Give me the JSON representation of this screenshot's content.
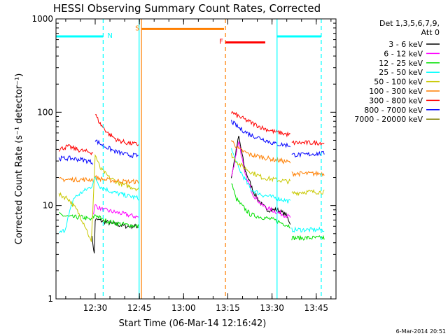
{
  "chart_data": {
    "type": "line",
    "title": "HESSI Observing Summary Count Rates, Corrected",
    "xlabel": "Start Time (06-Mar-14 12:16:42)",
    "ylabel": "Corrected Count Rate (s⁻¹ detector⁻¹)",
    "yscale": "log",
    "xlim_minutes": [
      0,
      95
    ],
    "ylim": [
      1,
      1000
    ],
    "x_ticks": [
      {
        "label": "12:30",
        "minute": 13.3
      },
      {
        "label": "12:45",
        "minute": 28.3
      },
      {
        "label": "13:00",
        "minute": 43.3
      },
      {
        "label": "13:15",
        "minute": 58.3
      },
      {
        "label": "13:30",
        "minute": 73.3
      },
      {
        "label": "13:45",
        "minute": 88.3
      }
    ],
    "y_ticks": [
      {
        "label": "1",
        "value": 1
      },
      {
        "label": "10",
        "value": 10
      },
      {
        "label": "100",
        "value": 100
      },
      {
        "label": "1000",
        "value": 1000
      }
    ],
    "legend": {
      "position": "right",
      "header": [
        "Det 1,3,5,6,7,9,",
        "Att 0"
      ],
      "entries": [
        {
          "label": "3 - 6 keV",
          "color": "#000000"
        },
        {
          "label": "6 - 12 keV",
          "color": "#ff00ff"
        },
        {
          "label": "12 - 25 keV",
          "color": "#00e000"
        },
        {
          "label": "25 - 50 keV",
          "color": "#00ffff"
        },
        {
          "label": "50 - 100 keV",
          "color": "#c8c800"
        },
        {
          "label": "100 - 300 keV",
          "color": "#ff7f00"
        },
        {
          "label": "300 - 800 keV",
          "color": "#ff0000"
        },
        {
          "label": "800 - 7000 keV",
          "color": "#0000ff"
        },
        {
          "label": "7000 - 20000 keV",
          "color": "#808000"
        }
      ]
    },
    "flag_bars": [
      {
        "label": "N",
        "color": "#00ffff",
        "segments": [
          [
            0,
            16
          ],
          [
            75,
            90
          ]
        ],
        "value": 650
      },
      {
        "label": "S",
        "color": "#ff7f00",
        "segments": [
          [
            29,
            57
          ]
        ],
        "value": 780
      },
      {
        "label": "F",
        "color": "#ff0000",
        "segments": [
          [
            57.5,
            71
          ]
        ],
        "value": 560
      }
    ],
    "markers": [
      {
        "minute": 16,
        "color": "#00ffff",
        "style": "dashed"
      },
      {
        "minute": 28.2,
        "color": "#00ffff",
        "style": "solid"
      },
      {
        "minute": 29,
        "color": "#ff7f00",
        "style": "solid"
      },
      {
        "minute": 57.5,
        "color": "#ff7f00",
        "style": "dashed"
      },
      {
        "minute": 75,
        "color": "#00ffff",
        "style": "solid"
      },
      {
        "minute": 90,
        "color": "#00ffff",
        "style": "dashed"
      }
    ],
    "series": [
      {
        "name": "3 - 6 keV",
        "color": "#000000",
        "segments": [
          [
            [
              12,
              5
            ],
            [
              12.5,
              4
            ],
            [
              13,
              3
            ],
            [
              13.3,
              7
            ],
            [
              14.5,
              7
            ],
            [
              18,
              6.5
            ],
            [
              24,
              6
            ],
            [
              28,
              6
            ]
          ],
          [
            [
              59.5,
              20
            ],
            [
              62,
              55
            ],
            [
              64,
              25
            ],
            [
              67,
              14
            ],
            [
              70,
              10
            ],
            [
              72,
              9
            ],
            [
              75,
              9
            ],
            [
              78,
              8
            ],
            [
              79.5,
              6.5
            ]
          ]
        ]
      },
      {
        "name": "6 - 12 keV",
        "color": "#ff00ff",
        "segments": [
          [
            [
              12.5,
              8
            ],
            [
              13.3,
              10
            ],
            [
              16,
              9
            ],
            [
              20,
              8.5
            ],
            [
              24,
              8
            ],
            [
              28,
              7.5
            ]
          ],
          [
            [
              59.5,
              20
            ],
            [
              62,
              50
            ],
            [
              64,
              22
            ],
            [
              67,
              13
            ],
            [
              70,
              10
            ],
            [
              73,
              9
            ],
            [
              75,
              8.5
            ],
            [
              79.5,
              7.5
            ]
          ]
        ]
      },
      {
        "name": "12 - 25 keV",
        "color": "#00e000",
        "segments": [
          [
            [
              1,
              8
            ],
            [
              5,
              7.5
            ],
            [
              9,
              7.5
            ],
            [
              12,
              7
            ],
            [
              13.3,
              8
            ],
            [
              16,
              7
            ],
            [
              20,
              6.5
            ],
            [
              24,
              6.2
            ],
            [
              28,
              6
            ]
          ],
          [
            [
              59.5,
              18
            ],
            [
              61,
              12
            ],
            [
              63,
              10
            ],
            [
              66,
              8
            ],
            [
              70,
              7.5
            ],
            [
              74,
              7
            ],
            [
              79.5,
              6
            ]
          ],
          [
            [
              80,
              4.5
            ],
            [
              84,
              4.5
            ],
            [
              88,
              4.5
            ],
            [
              91,
              4.5
            ]
          ]
        ]
      },
      {
        "name": "25 - 50 keV",
        "color": "#00ffff",
        "segments": [
          [
            [
              1,
              5
            ],
            [
              3,
              5.5
            ],
            [
              6,
              12
            ],
            [
              9,
              14
            ],
            [
              12,
              16
            ],
            [
              13.3,
              20
            ],
            [
              15,
              16
            ],
            [
              19,
              14
            ],
            [
              23,
              13
            ],
            [
              28,
              12
            ]
          ],
          [
            [
              59.5,
              40
            ],
            [
              62,
              25
            ],
            [
              66,
              15
            ],
            [
              70,
              13
            ],
            [
              75,
              12
            ],
            [
              79.5,
              11
            ]
          ],
          [
            [
              80,
              5.5
            ],
            [
              84,
              5.5
            ],
            [
              88,
              5.5
            ],
            [
              91,
              5.5
            ]
          ]
        ]
      },
      {
        "name": "50 - 100 keV",
        "color": "#c8c800",
        "segments": [
          [
            [
              1,
              13
            ],
            [
              4,
              12
            ],
            [
              7,
              9
            ],
            [
              10,
              6
            ],
            [
              12,
              4
            ],
            [
              13.3,
              35
            ],
            [
              15,
              25
            ],
            [
              18,
              20
            ],
            [
              22,
              17
            ],
            [
              25,
              16
            ],
            [
              28,
              15
            ]
          ],
          [
            [
              59.5,
              35
            ],
            [
              62,
              28
            ],
            [
              66,
              23
            ],
            [
              70,
              20
            ],
            [
              74,
              19
            ],
            [
              79.5,
              18
            ]
          ],
          [
            [
              80,
              13.5
            ],
            [
              84,
              14
            ],
            [
              88,
              14
            ],
            [
              91,
              14
            ]
          ]
        ]
      },
      {
        "name": "100 - 300 keV",
        "color": "#ff7f00",
        "segments": [
          [
            [
              1,
              19
            ],
            [
              5,
              19
            ],
            [
              9,
              19
            ],
            [
              12.5,
              19
            ]
          ],
          [
            [
              13.3,
              20
            ],
            [
              16,
              19
            ],
            [
              20,
              18.5
            ],
            [
              24,
              18
            ],
            [
              28,
              18
            ]
          ],
          [
            [
              59.5,
              50
            ],
            [
              62,
              40
            ],
            [
              66,
              35
            ],
            [
              70,
              33
            ],
            [
              74,
              31
            ],
            [
              79.5,
              29
            ]
          ],
          [
            [
              80,
              22
            ],
            [
              84,
              22
            ],
            [
              88,
              22
            ],
            [
              91,
              22
            ]
          ]
        ]
      },
      {
        "name": "300 - 800 keV",
        "color": "#ff0000",
        "segments": [
          [
            [
              1,
              40
            ],
            [
              4,
              43
            ],
            [
              7,
              40
            ],
            [
              10,
              38
            ],
            [
              12.5,
              37
            ]
          ],
          [
            [
              13.3,
              95
            ],
            [
              15,
              75
            ],
            [
              18,
              58
            ],
            [
              21,
              50
            ],
            [
              24,
              47
            ],
            [
              28,
              45
            ]
          ],
          [
            [
              59.5,
              100
            ],
            [
              62,
              90
            ],
            [
              66,
              78
            ],
            [
              70,
              68
            ],
            [
              74,
              62
            ],
            [
              79.5,
              57
            ]
          ],
          [
            [
              80,
              47
            ],
            [
              84,
              47
            ],
            [
              88,
              47
            ],
            [
              91,
              47
            ]
          ]
        ]
      },
      {
        "name": "800 - 7000 keV",
        "color": "#0000ff",
        "segments": [
          [
            [
              1,
              32
            ],
            [
              5,
              32
            ],
            [
              9,
              31
            ],
            [
              12.5,
              29
            ]
          ],
          [
            [
              13.3,
              50
            ],
            [
              16,
              44
            ],
            [
              20,
              38
            ],
            [
              24,
              35
            ],
            [
              28,
              34
            ]
          ],
          [
            [
              59.5,
              80
            ],
            [
              62,
              68
            ],
            [
              66,
              57
            ],
            [
              70,
              52
            ],
            [
              74,
              46
            ],
            [
              79.5,
              44
            ]
          ],
          [
            [
              80,
              35
            ],
            [
              84,
              35
            ],
            [
              88,
              36
            ],
            [
              91,
              36
            ]
          ]
        ]
      },
      {
        "name": "7000 - 20000 keV",
        "color": "#808000",
        "segments": []
      }
    ],
    "corner_note": "6-Mar-2014 20:51"
  }
}
